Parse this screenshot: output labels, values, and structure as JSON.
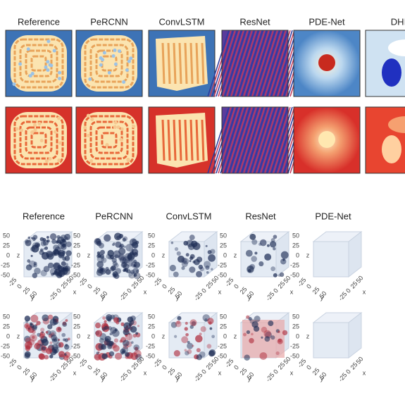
{
  "top_panel": {
    "columns": [
      "Reference",
      "PeRCNN",
      "ConvLSTM",
      "ResNet",
      "PDE-Net",
      "DHI"
    ]
  },
  "bottom_panel": {
    "columns": [
      "Reference",
      "PeRCNN",
      "ConvLSTM",
      "ResNet",
      "PDE-Net"
    ],
    "axes": {
      "z_label": "z",
      "y_label": "y",
      "x_label": "x",
      "z_ticks": [
        "50",
        "25",
        "0",
        "-25",
        "-50"
      ],
      "bottom_ticks": [
        "-25",
        "0",
        "25",
        "50"
      ]
    }
  }
}
